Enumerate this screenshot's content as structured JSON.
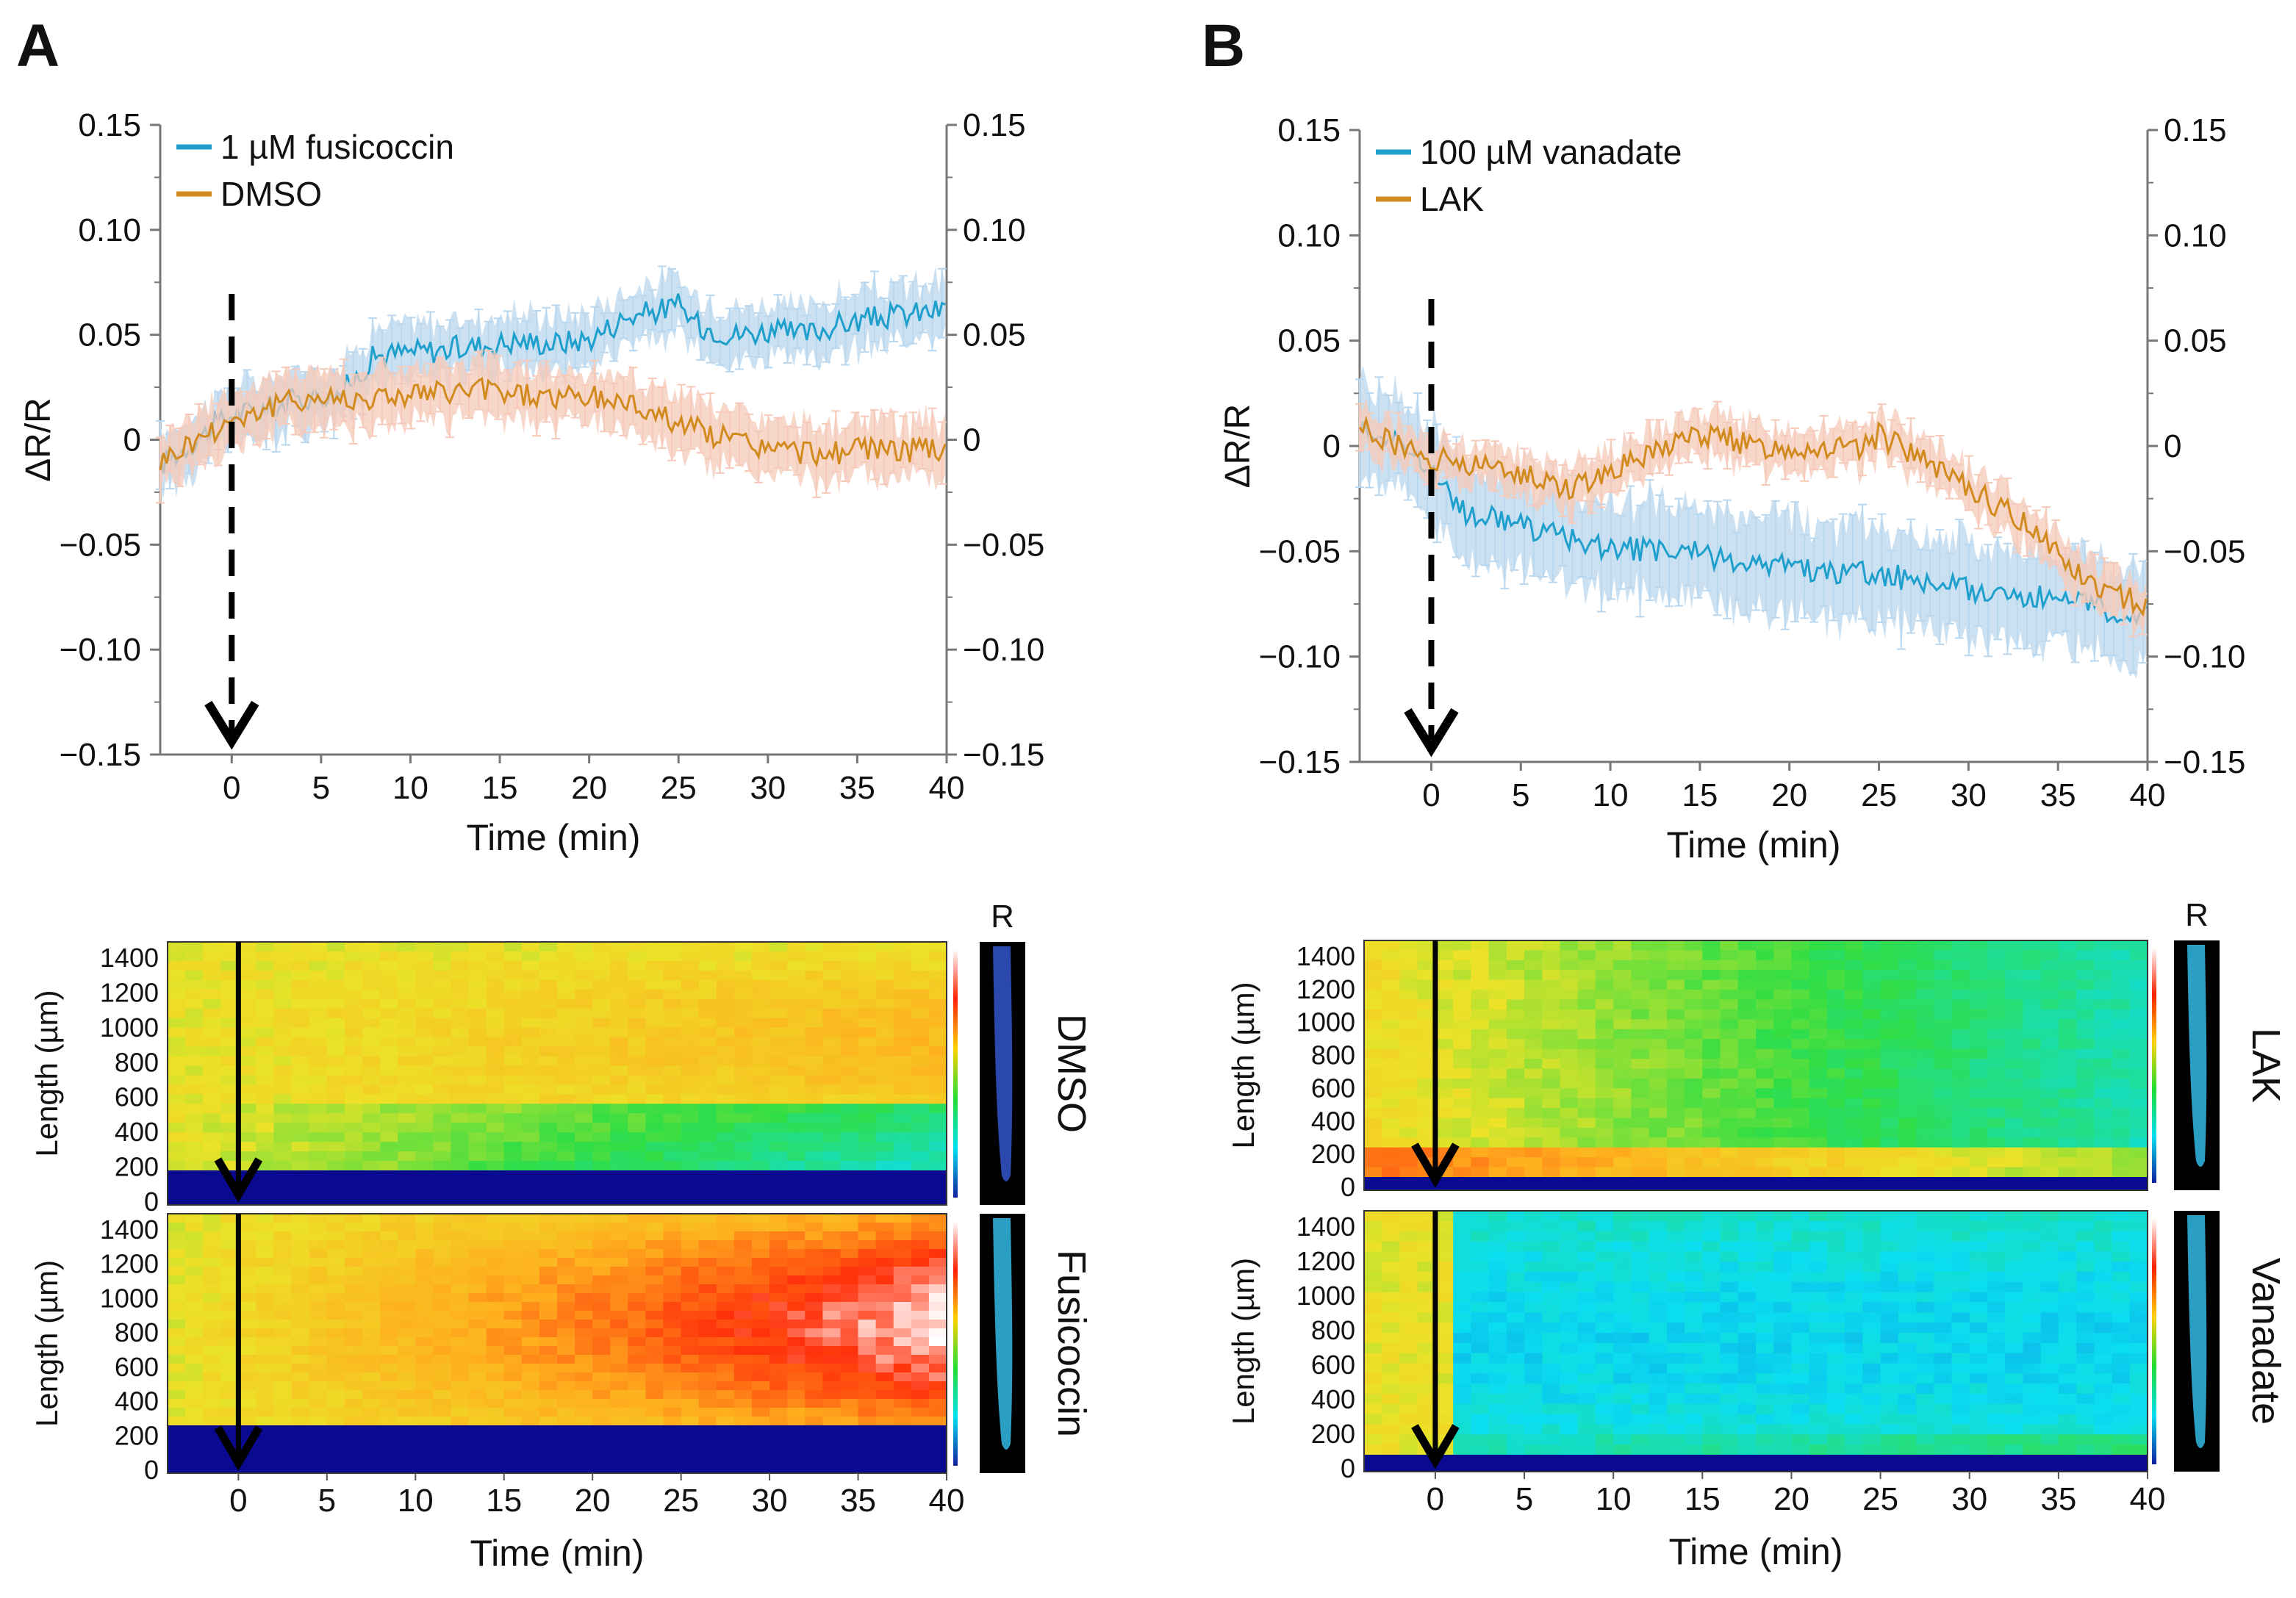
{
  "panels": [
    {
      "letter": "A",
      "chart_data": {
        "type": "line",
        "xlabel": "Time (min)",
        "ylabel": "ΔR/R",
        "xlim": [
          -4,
          40
        ],
        "ylim": [
          -0.15,
          0.15
        ],
        "xticks": [
          "0",
          "5",
          "10",
          "15",
          "20",
          "25",
          "30",
          "35",
          "40"
        ],
        "yticks_left": [
          "0.15",
          "0.10",
          "0.05",
          "0",
          "−0.05",
          "−0.10",
          "−0.15"
        ],
        "yticks_right": [
          "0.15",
          "0.10",
          "0.05",
          "0",
          "−0.05",
          "−0.10",
          "−0.15"
        ],
        "treatment_time": 0,
        "series": [
          {
            "name": "1 µM fusicoccin",
            "color": "#1f9fcc",
            "band": "#b9d7ee",
            "x": [
              -4,
              -2,
              0,
              2,
              4,
              6,
              7,
              8,
              10,
              12,
              14,
              16,
              18,
              20,
              22,
              24,
              25,
              26,
              28,
              30,
              32,
              34,
              36,
              38,
              40
            ],
            "y": [
              -0.012,
              0.0,
              0.012,
              0.015,
              0.02,
              0.022,
              0.03,
              0.04,
              0.042,
              0.043,
              0.045,
              0.047,
              0.046,
              0.048,
              0.058,
              0.062,
              0.064,
              0.055,
              0.05,
              0.052,
              0.05,
              0.055,
              0.058,
              0.06,
              0.062
            ],
            "err": 0.013
          },
          {
            "name": "DMSO",
            "color": "#d18a1e",
            "band": "#f6c9b9",
            "x": [
              -4,
              -2,
              0,
              2,
              4,
              6,
              8,
              10,
              12,
              14,
              16,
              18,
              20,
              22,
              24,
              26,
              28,
              30,
              32,
              34,
              36,
              38,
              40
            ],
            "y": [
              -0.01,
              0.0,
              0.01,
              0.015,
              0.02,
              0.02,
              0.02,
              0.022,
              0.022,
              0.024,
              0.022,
              0.02,
              0.02,
              0.018,
              0.012,
              0.005,
              0.0,
              -0.004,
              -0.006,
              -0.006,
              -0.004,
              -0.005,
              -0.005
            ],
            "err": 0.013
          }
        ]
      },
      "kymo": {
        "xlabel": "Time (min)",
        "ylabel": "Length (µm)",
        "xticks": [
          "0",
          "5",
          "10",
          "15",
          "20",
          "25",
          "30",
          "35",
          "40"
        ],
        "yticks": [
          "1400",
          "1200",
          "1000",
          "800",
          "600",
          "400",
          "200",
          "0"
        ],
        "r_label": "R",
        "rows": [
          {
            "label": "DMSO",
            "colormap_level": 0.62
          },
          {
            "label": "Fusicoccin",
            "colormap_level": 0.8
          }
        ]
      }
    },
    {
      "letter": "B",
      "chart_data": {
        "type": "line",
        "xlabel": "Time (min)",
        "ylabel": "ΔR/R",
        "xlim": [
          -4,
          40
        ],
        "ylim": [
          -0.15,
          0.15
        ],
        "xticks": [
          "0",
          "5",
          "10",
          "15",
          "20",
          "25",
          "30",
          "35",
          "40"
        ],
        "yticks_left": [
          "0.15",
          "0.10",
          "0.05",
          "0",
          "−0.05",
          "−0.10",
          "−0.15"
        ],
        "yticks_right": [
          "0.15",
          "0.10",
          "0.05",
          "0",
          "−0.05",
          "−0.10",
          "−0.15"
        ],
        "treatment_time": 0,
        "series": [
          {
            "name": "100 µM vanadate",
            "color": "#1f9fcc",
            "band": "#b9d7ee",
            "x": [
              -4,
              -2,
              0,
              1,
              2,
              4,
              6,
              8,
              10,
              12,
              14,
              16,
              18,
              20,
              22,
              24,
              26,
              28,
              30,
              32,
              34,
              36,
              38,
              40
            ],
            "y": [
              0.01,
              0.002,
              -0.01,
              -0.025,
              -0.032,
              -0.035,
              -0.04,
              -0.045,
              -0.048,
              -0.05,
              -0.05,
              -0.053,
              -0.055,
              -0.057,
              -0.06,
              -0.06,
              -0.062,
              -0.065,
              -0.068,
              -0.07,
              -0.072,
              -0.075,
              -0.078,
              -0.078
            ],
            "err": 0.022
          },
          {
            "name": "LAK",
            "color": "#d18a1e",
            "band": "#f6c9b9",
            "x": [
              -4,
              -2,
              0,
              2,
              4,
              6,
              8,
              10,
              12,
              14,
              16,
              18,
              20,
              22,
              24,
              25,
              26,
              28,
              30,
              32,
              34,
              36,
              38,
              40
            ],
            "y": [
              0.01,
              0.0,
              -0.005,
              -0.01,
              -0.01,
              -0.015,
              -0.02,
              -0.01,
              -0.005,
              0.005,
              0.005,
              0.0,
              0.0,
              0.0,
              -0.002,
              0.005,
              0.0,
              -0.01,
              -0.02,
              -0.03,
              -0.04,
              -0.06,
              -0.07,
              -0.075
            ],
            "err": 0.01
          }
        ]
      },
      "kymo": {
        "xlabel": "Time (min)",
        "ylabel": "Length (µm)",
        "xticks": [
          "0",
          "5",
          "10",
          "15",
          "20",
          "25",
          "30",
          "35",
          "40"
        ],
        "yticks": [
          "1400",
          "1200",
          "1000",
          "800",
          "600",
          "400",
          "200",
          "0"
        ],
        "r_label": "R",
        "rows": [
          {
            "label": "LAK",
            "colormap_level": 0.4
          },
          {
            "label": "Vanadate",
            "colormap_level": 0.3
          }
        ]
      }
    }
  ]
}
